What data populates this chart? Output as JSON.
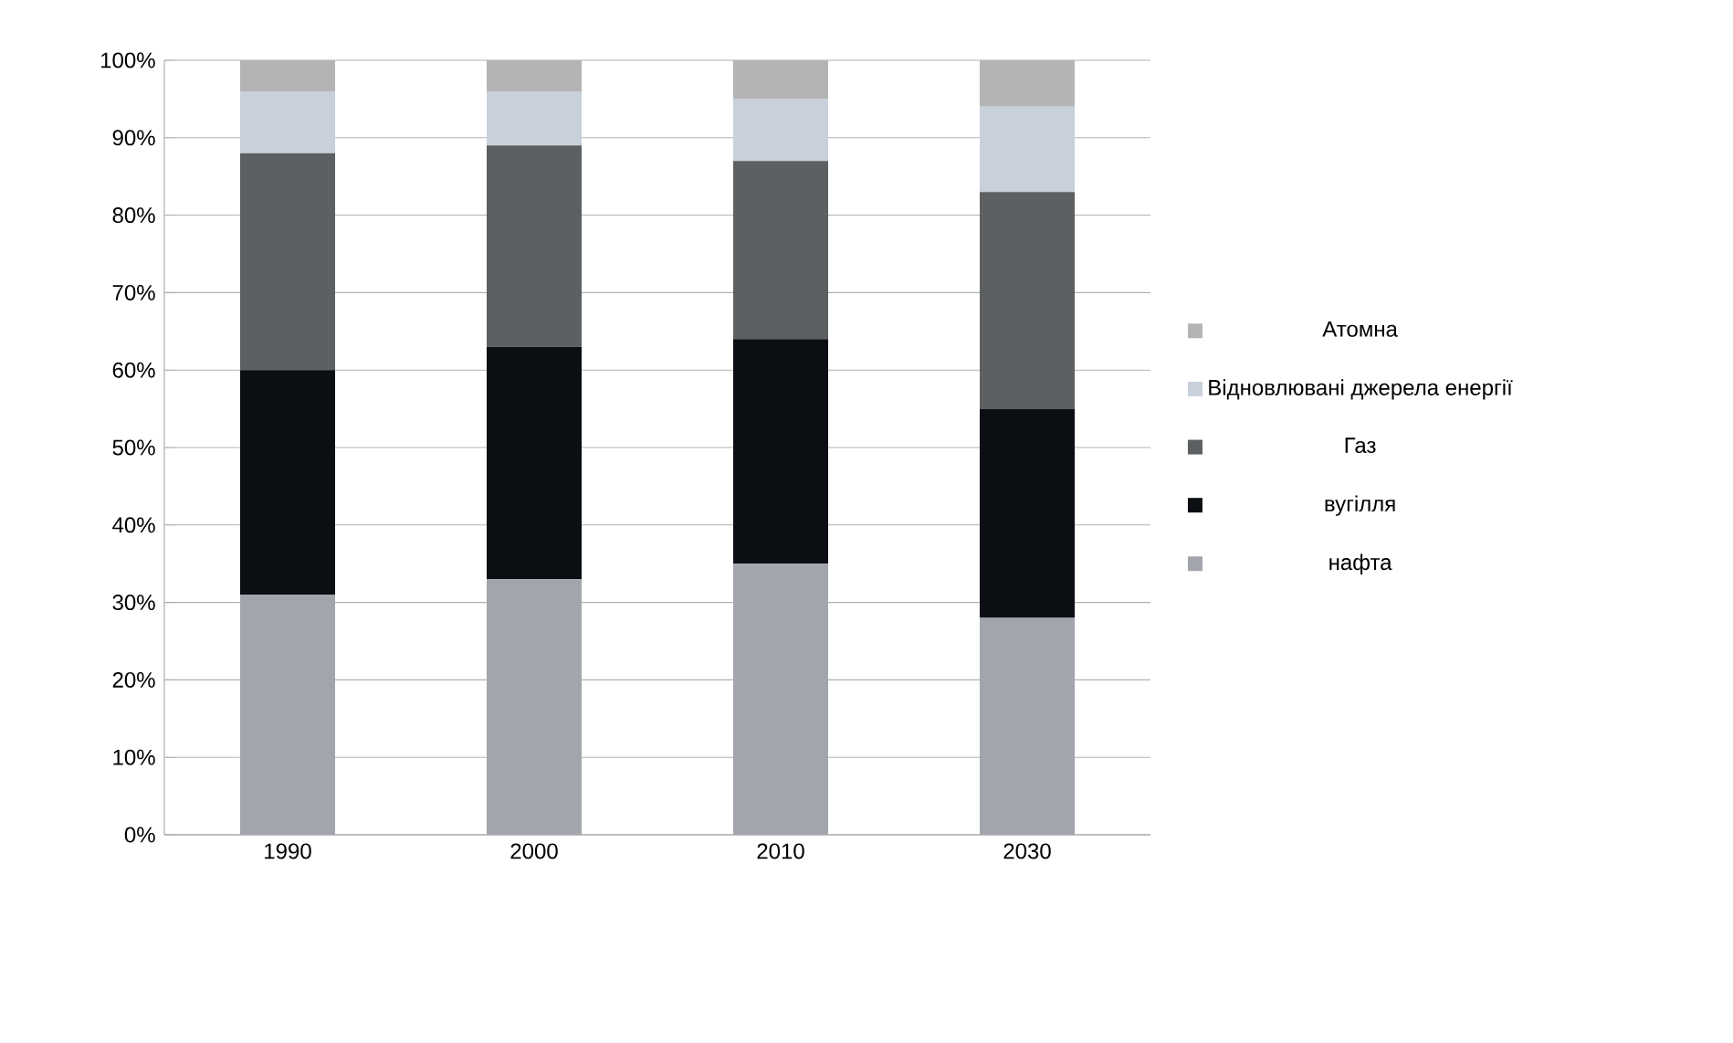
{
  "chart_data": {
    "type": "bar",
    "stacked": true,
    "categories": [
      "1990",
      "2000",
      "2010",
      "2030"
    ],
    "series": [
      {
        "name": "нафта",
        "color": "#a2a6ac",
        "values": [
          31,
          33,
          35,
          28
        ]
      },
      {
        "name": "вугілля",
        "color": "#0b0e12",
        "values": [
          29,
          30,
          29,
          27
        ]
      },
      {
        "name": "Газ",
        "color": "#5c6062",
        "values": [
          28,
          26,
          23,
          28
        ]
      },
      {
        "name": "Відновлювані джерела енергії",
        "color": "#c8d0dc",
        "values": [
          8,
          7,
          8,
          11
        ]
      },
      {
        "name": "Атомна",
        "color": "#b4b4b4",
        "values": [
          4,
          4,
          5,
          6
        ]
      }
    ],
    "ylim": [
      0,
      100
    ],
    "yticks": [
      {
        "value": 0,
        "label": "0%"
      },
      {
        "value": 10,
        "label": "10%"
      },
      {
        "value": 20,
        "label": "20%"
      },
      {
        "value": 30,
        "label": "30%"
      },
      {
        "value": 40,
        "label": "40%"
      },
      {
        "value": 50,
        "label": "50%"
      },
      {
        "value": 60,
        "label": "60%"
      },
      {
        "value": 70,
        "label": "70%"
      },
      {
        "value": 80,
        "label": "80%"
      },
      {
        "value": 90,
        "label": "90%"
      },
      {
        "value": 100,
        "label": "100%"
      }
    ],
    "grid": "y",
    "legend": "right"
  }
}
